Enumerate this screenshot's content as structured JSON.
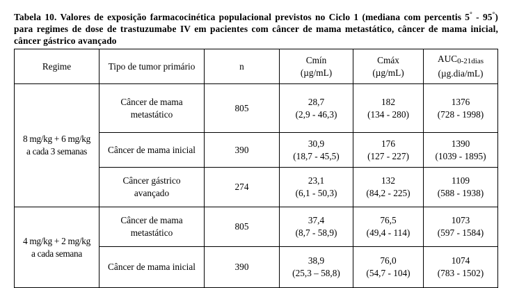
{
  "caption": {
    "part1": "Tabela 10. Valores de exposição farmacocinética populacional previstos no Ciclo 1 (mediana com percentis 5",
    "deg1": "°",
    "part2": " - 95",
    "deg2": "°",
    "part3": ") para regimes de dose de trastuzumabe IV em pacientes com câncer de mama metastático, câncer de mama inicial, câncer gástrico avançado"
  },
  "headers": {
    "regime": "Regime",
    "tumor": "Tipo de tumor primário",
    "n": "n",
    "cmin_line1": "Cmín",
    "cmin_line2": "(µg/mL)",
    "cmax_line1": "Cmáx",
    "cmax_line2": "(µg/mL)",
    "auc_main": "AUC",
    "auc_sub": "0-21dias",
    "auc_line2": "(µg.dia/mL)"
  },
  "regimes": [
    {
      "line1": "8 mg/kg + 6 mg/kg",
      "line2": "a cada 3 semanas"
    },
    {
      "line1": "4 mg/kg + 2 mg/kg",
      "line2": "a cada semana"
    }
  ],
  "rows": [
    {
      "tumor_line1": "Câncer de mama",
      "tumor_line2": "metastático",
      "n": "805",
      "cmin": "28,7",
      "cmin_range": "(2,9 - 46,3)",
      "cmax": "182",
      "cmax_range": "(134 - 280)",
      "auc": "1376",
      "auc_range": "(728 - 1998)"
    },
    {
      "tumor_line1": "Câncer de mama inicial",
      "tumor_line2": "",
      "n": "390",
      "cmin": "30,9",
      "cmin_range": "(18,7 - 45,5)",
      "cmax": "176",
      "cmax_range": "(127 - 227)",
      "auc": "1390",
      "auc_range": "(1039 - 1895)"
    },
    {
      "tumor_line1": "Câncer gástrico",
      "tumor_line2": "avançado",
      "n": "274",
      "cmin": "23,1",
      "cmin_range": "(6,1 - 50,3)",
      "cmax": "132",
      "cmax_range": "(84,2 - 225)",
      "auc": "1109",
      "auc_range": "(588 - 1938)"
    },
    {
      "tumor_line1": "Câncer de mama",
      "tumor_line2": "metastático",
      "n": "805",
      "cmin": "37,4",
      "cmin_range": "(8,7 - 58,9)",
      "cmax": "76,5",
      "cmax_range": "(49,4 - 114)",
      "auc": "1073",
      "auc_range": "(597 - 1584)"
    },
    {
      "tumor_line1": "Câncer de mama inicial",
      "tumor_line2": "",
      "n": "390",
      "cmin": "38,9",
      "cmin_range": "(25,3 – 58,8)",
      "cmax": "76,0",
      "cmax_range": "(54,7 - 104)",
      "auc": "1074",
      "auc_range": "(783 - 1502)"
    }
  ]
}
